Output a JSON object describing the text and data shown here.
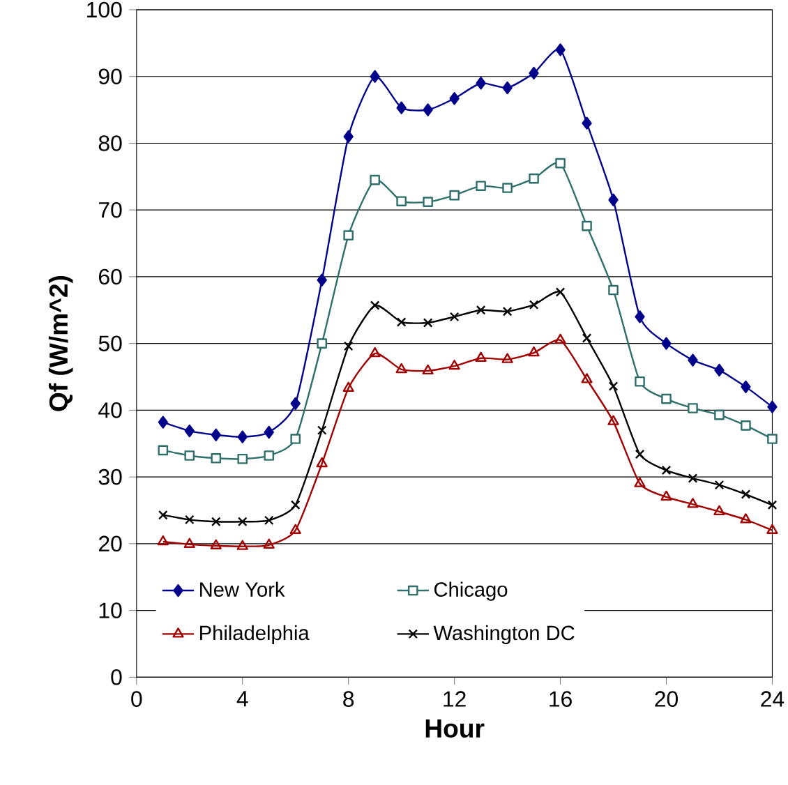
{
  "chart_data": {
    "type": "line",
    "xlabel": "Hour",
    "ylabel": "Qf (W/m^2)",
    "x": [
      1,
      2,
      3,
      4,
      5,
      6,
      7,
      8,
      9,
      10,
      11,
      12,
      13,
      14,
      15,
      16,
      17,
      18,
      19,
      20,
      21,
      22,
      23,
      24
    ],
    "xlim": [
      0,
      24
    ],
    "xticks": [
      0,
      4,
      8,
      12,
      16,
      20,
      24
    ],
    "ylim": [
      0,
      100
    ],
    "yticks": [
      0,
      10,
      20,
      30,
      40,
      50,
      60,
      70,
      80,
      90,
      100
    ],
    "grid": "y",
    "legend": "bottom",
    "series": [
      {
        "name": "New York",
        "color": "#00008b",
        "marker": "diamond",
        "values": [
          38.2,
          36.9,
          36.3,
          36.0,
          36.7,
          41,
          59.5,
          81,
          90,
          85.3,
          85,
          86.7,
          89,
          88.3,
          90.5,
          94,
          83,
          71.5,
          54,
          50,
          47.5,
          46,
          43.5,
          40.5
        ]
      },
      {
        "name": "Chicago",
        "color": "#2f6f6a",
        "marker": "square",
        "values": [
          34,
          33.2,
          32.8,
          32.7,
          33.2,
          35.7,
          50,
          66.2,
          74.5,
          71.3,
          71.2,
          72.2,
          73.6,
          73.3,
          74.7,
          77,
          67.6,
          58,
          44.3,
          41.7,
          40.3,
          39.3,
          37.7,
          35.7
        ]
      },
      {
        "name": "Philadelphia",
        "color": "#a00000",
        "marker": "triangle",
        "values": [
          20.3,
          19.9,
          19.7,
          19.6,
          19.8,
          22,
          32,
          43.3,
          48.5,
          46.1,
          45.9,
          46.6,
          47.8,
          47.6,
          48.6,
          50.5,
          44.6,
          38.3,
          29,
          27,
          25.9,
          24.8,
          23.6,
          22
        ]
      },
      {
        "name": "Washington DC",
        "color": "#000000",
        "marker": "cross",
        "values": [
          24.3,
          23.6,
          23.3,
          23.3,
          23.5,
          25.8,
          37,
          49.6,
          55.7,
          53.2,
          53.1,
          54,
          55,
          54.8,
          55.8,
          57.7,
          50.8,
          43.6,
          33.4,
          31,
          29.8,
          28.8,
          27.4,
          25.8
        ]
      }
    ]
  }
}
